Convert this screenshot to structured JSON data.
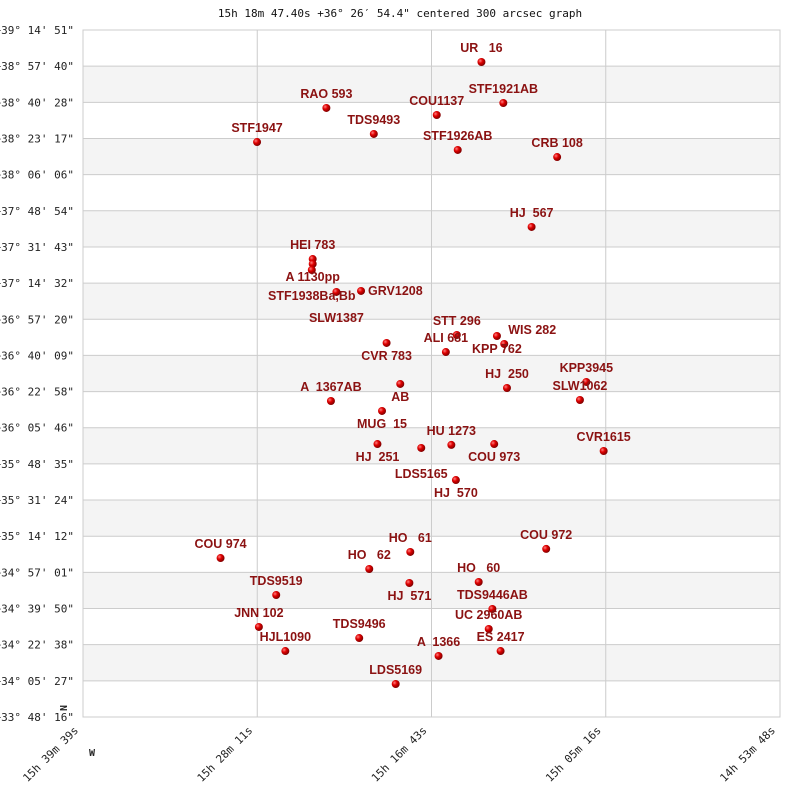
{
  "chart_data": {
    "type": "scatter",
    "title": "15h 18m 47.40s +36° 26′ 54.4\" centered 300 arcsec graph",
    "x_axis": {
      "quantity": "right ascension (hours)",
      "range": [
        15.660833,
        14.896667
      ],
      "ticks": [
        "15h 39m 39s",
        "15h 28m 11s",
        "15h 16m 43s",
        "15h 05m 16s",
        "14h 53m 48s"
      ]
    },
    "y_axis": {
      "quantity": "declination (degrees)",
      "range": [
        33.804444,
        39.2475
      ],
      "ticks": [
        "+39° 14' 51\"",
        "+38° 57' 40\"",
        "+38° 40' 28\"",
        "+38° 23' 17\"",
        "+38° 06' 06\"",
        "+37° 48' 54\"",
        "+37° 31' 43\"",
        "+37° 14' 32\"",
        "+36° 57' 20\"",
        "+36° 40' 09\"",
        "+36° 22' 58\"",
        "+36° 05' 46\"",
        "+35° 48' 35\"",
        "+35° 31' 24\"",
        "+35° 14' 12\"",
        "+34° 57' 01\"",
        "+34° 39' 50\"",
        "+34° 22' 38\"",
        "+34° 05' 27\"",
        "+33° 48' 16\""
      ]
    },
    "direction_labels": {
      "north": "N",
      "west": "W"
    },
    "grid": true,
    "alternating_bands": true,
    "colors": {
      "point": "#dd0000",
      "label": "#8b1212",
      "band": "#f4f4f4",
      "grid": "#cccccc"
    },
    "points": [
      {
        "label": "UR   16",
        "ra": 15.224,
        "dec": 38.994
      },
      {
        "label": "STF1921AB",
        "ra": 15.2,
        "dec": 38.669
      },
      {
        "label": "COU1137",
        "ra": 15.273,
        "dec": 38.574
      },
      {
        "label": "RAO 593",
        "ra": 15.394,
        "dec": 38.63
      },
      {
        "label": "TDS9493",
        "ra": 15.342,
        "dec": 38.424
      },
      {
        "label": "STF1947",
        "ra": 15.47,
        "dec": 38.36
      },
      {
        "label": "STF1926AB",
        "ra": 15.25,
        "dec": 38.297
      },
      {
        "label": "CRB 108",
        "ra": 15.141,
        "dec": 38.241
      },
      {
        "label": "HJ  567",
        "ra": 15.169,
        "dec": 37.687
      },
      {
        "label": "HEI 783",
        "ra": 15.409,
        "dec": 37.433
      },
      {
        "label": "A 1130pp",
        "ra": 15.409,
        "dec": 37.394
      },
      {
        "label": "STF1938Ba,Bb",
        "ra": 15.41,
        "dec": 37.346
      },
      {
        "label": "SLW1387",
        "ra": 15.383,
        "dec": 37.172
      },
      {
        "label": "GRV1208",
        "ra": 15.356,
        "dec": 37.18
      },
      {
        "label": "STT 296",
        "ra": 15.251,
        "dec": 36.831
      },
      {
        "label": "KPP 762",
        "ra": 15.207,
        "dec": 36.823
      },
      {
        "label": "WIS 282",
        "ra": 15.199,
        "dec": 36.76
      },
      {
        "label": "CVR 783",
        "ra": 15.328,
        "dec": 36.768
      },
      {
        "label": "ALI 681",
        "ra": 15.263,
        "dec": 36.696
      },
      {
        "label": "AB",
        "ra": 15.313,
        "dec": 36.443
      },
      {
        "label": "HJ  250",
        "ra": 15.196,
        "dec": 36.411
      },
      {
        "label": "KPP3945",
        "ra": 15.109,
        "dec": 36.459
      },
      {
        "label": "SLW1062",
        "ra": 15.116,
        "dec": 36.316
      },
      {
        "label": "A  1367AB",
        "ra": 15.389,
        "dec": 36.308
      },
      {
        "label": "MUG  15",
        "ra": 15.333,
        "dec": 36.229
      },
      {
        "label": "HJ  251",
        "ra": 15.338,
        "dec": 35.967
      },
      {
        "label": "HU 1273",
        "ra": 15.257,
        "dec": 35.96
      },
      {
        "label": "COU 973",
        "ra": 15.21,
        "dec": 35.967
      },
      {
        "label": "LDS5165",
        "ra": 15.29,
        "dec": 35.936
      },
      {
        "label": "CVR1615",
        "ra": 15.09,
        "dec": 35.912
      },
      {
        "label": "HJ  570",
        "ra": 15.252,
        "dec": 35.682
      },
      {
        "label": "COU 972",
        "ra": 15.153,
        "dec": 35.136
      },
      {
        "label": "HO   61",
        "ra": 15.302,
        "dec": 35.112
      },
      {
        "label": "COU 974",
        "ra": 15.51,
        "dec": 35.064
      },
      {
        "label": "HO   62",
        "ra": 15.347,
        "dec": 34.977
      },
      {
        "label": "HO   60",
        "ra": 15.227,
        "dec": 34.874
      },
      {
        "label": "HJ  571",
        "ra": 15.303,
        "dec": 34.866
      },
      {
        "label": "TDS9519",
        "ra": 15.449,
        "dec": 34.771
      },
      {
        "label": "TDS9446AB",
        "ra": 15.212,
        "dec": 34.66
      },
      {
        "label": "JNN 102",
        "ra": 15.468,
        "dec": 34.518
      },
      {
        "label": "UC 2960AB",
        "ra": 15.216,
        "dec": 34.502
      },
      {
        "label": "TDS9496",
        "ra": 15.358,
        "dec": 34.43
      },
      {
        "label": "HJL1090",
        "ra": 15.439,
        "dec": 34.327
      },
      {
        "label": "ES 2417",
        "ra": 15.203,
        "dec": 34.327
      },
      {
        "label": "A  1366",
        "ra": 15.271,
        "dec": 34.288
      },
      {
        "label": "LDS5169",
        "ra": 15.318,
        "dec": 34.066
      }
    ]
  }
}
